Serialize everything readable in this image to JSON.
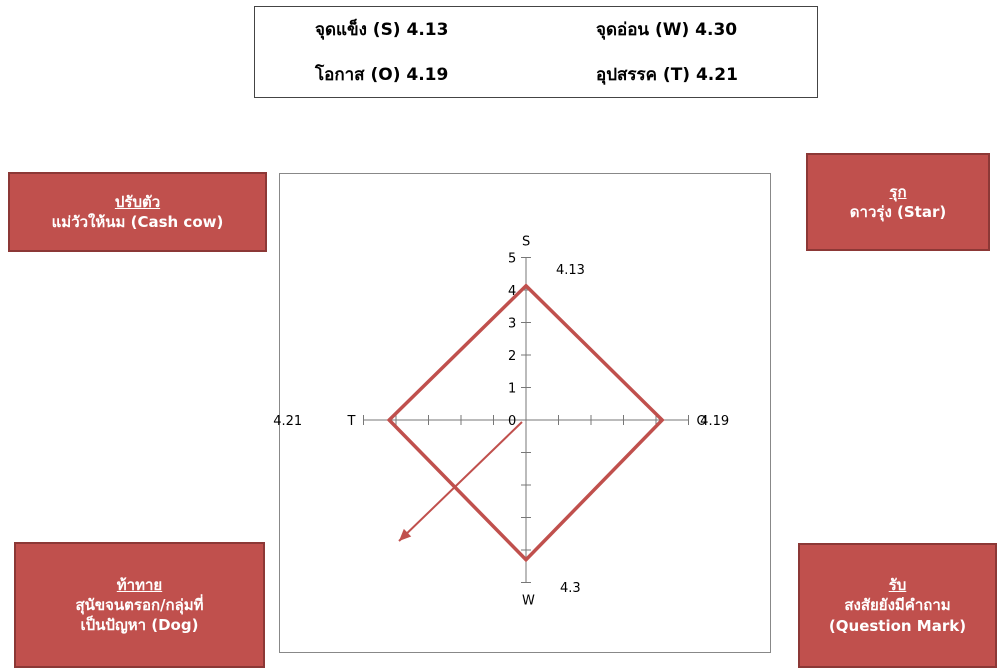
{
  "summary_table": {
    "strength": "จุดแข็ง (S) 4.13",
    "weakness": "จุดอ่อน (W) 4.30",
    "opportunity": "โอกาส (O) 4.19",
    "threat": "อุปสรรค (T) 4.21"
  },
  "quadrants": {
    "top_left": {
      "strategy": "ปรับตัว",
      "label": "แม่วัวให้นม (Cash cow)"
    },
    "top_right": {
      "strategy": "รุก",
      "label": "ดาวรุ่ง (Star)"
    },
    "bottom_left": {
      "strategy": "ท้าทาย",
      "line1": "สุนัขจนตรอก/กลุ่มที่",
      "line2": "เป็นปัญหา (Dog)"
    },
    "bottom_right": {
      "strategy": "รับ",
      "line1": "สงสัยยังมีคำถาม",
      "line2": "(Question Mark)"
    }
  },
  "chart_data": {
    "type": "radar",
    "axes": [
      "S",
      "O",
      "W",
      "T"
    ],
    "values": [
      4.13,
      4.19,
      4.3,
      4.21
    ],
    "value_labels": [
      "4.13",
      "4.19",
      "4.3",
      "4.21"
    ],
    "tick_labels": [
      "0",
      "1",
      "2",
      "3",
      "4",
      "5"
    ],
    "range": [
      0,
      5
    ],
    "line_color": "#c0504d"
  }
}
